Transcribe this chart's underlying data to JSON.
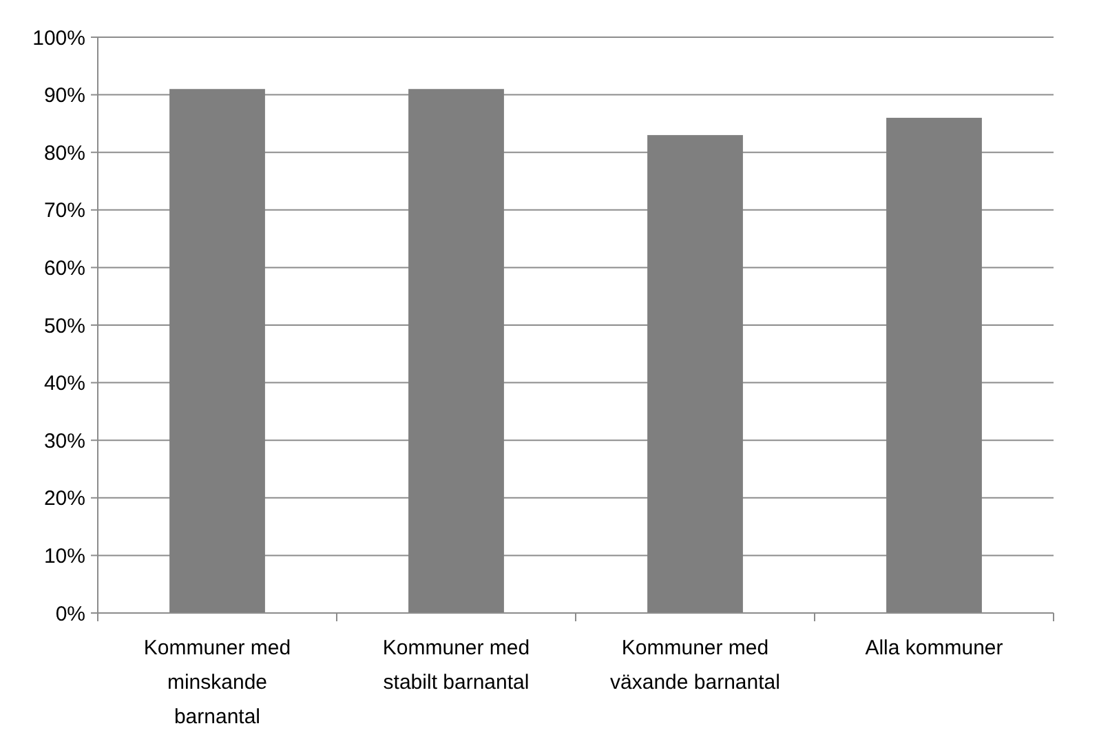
{
  "chart_data": {
    "type": "bar",
    "categories": [
      "Kommuner med minskande barnantal",
      "Kommuner med stabilt barnantal",
      "Kommuner med växande barnantal",
      "Alla kommuner"
    ],
    "values": [
      91,
      91,
      83,
      86
    ],
    "color": "#7f7f7f",
    "ylim": [
      0,
      100
    ],
    "yticks": [
      {
        "value": 0,
        "label": "0%"
      },
      {
        "value": 10,
        "label": "10%"
      },
      {
        "value": 20,
        "label": "20%"
      },
      {
        "value": 30,
        "label": "30%"
      },
      {
        "value": 40,
        "label": "40%"
      },
      {
        "value": 50,
        "label": "50%"
      },
      {
        "value": 60,
        "label": "60%"
      },
      {
        "value": 70,
        "label": "70%"
      },
      {
        "value": 80,
        "label": "80%"
      },
      {
        "value": 90,
        "label": "90%"
      },
      {
        "value": 100,
        "label": "100%"
      }
    ],
    "grid": "y"
  }
}
